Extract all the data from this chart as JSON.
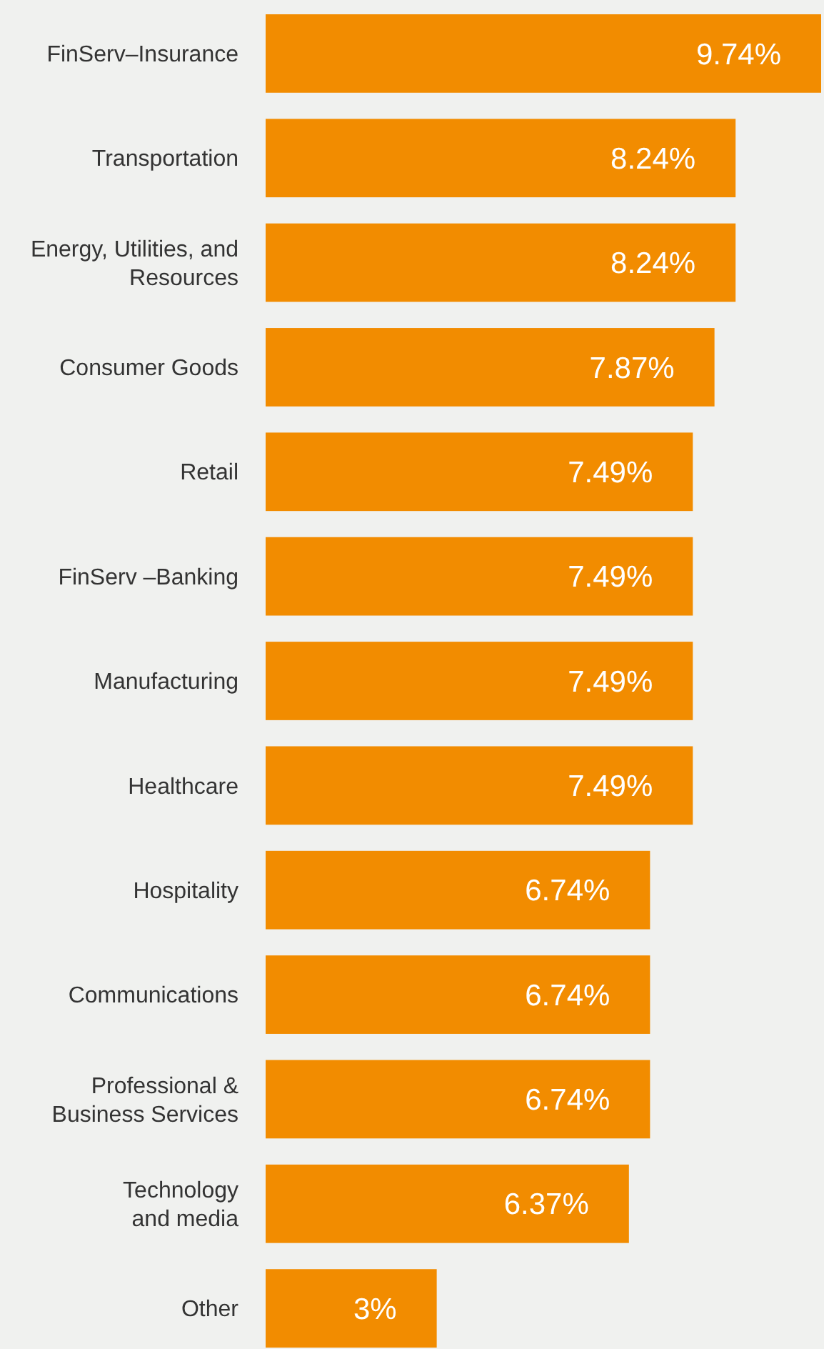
{
  "chart_data": {
    "type": "bar",
    "orientation": "horizontal",
    "categories": [
      "FinServ–Insurance",
      "Transportation",
      "Energy, Utilities, and\nResources",
      "Consumer Goods",
      "Retail",
      "FinServ –Banking",
      "Manufacturing",
      "Healthcare",
      "Hospitality",
      "Communications",
      "Professional &\nBusiness Services",
      "Technology\nand media",
      "Other"
    ],
    "values": [
      9.74,
      8.24,
      8.24,
      7.87,
      7.49,
      7.49,
      7.49,
      7.49,
      6.74,
      6.74,
      6.74,
      6.37,
      3
    ],
    "value_labels": [
      "9.74%",
      "8.24%",
      "8.24%",
      "7.87%",
      "7.49%",
      "7.49%",
      "7.49%",
      "7.49%",
      "6.74%",
      "6.74%",
      "6.74%",
      "6.37%",
      "3%"
    ],
    "color": "#f28c00"
  }
}
